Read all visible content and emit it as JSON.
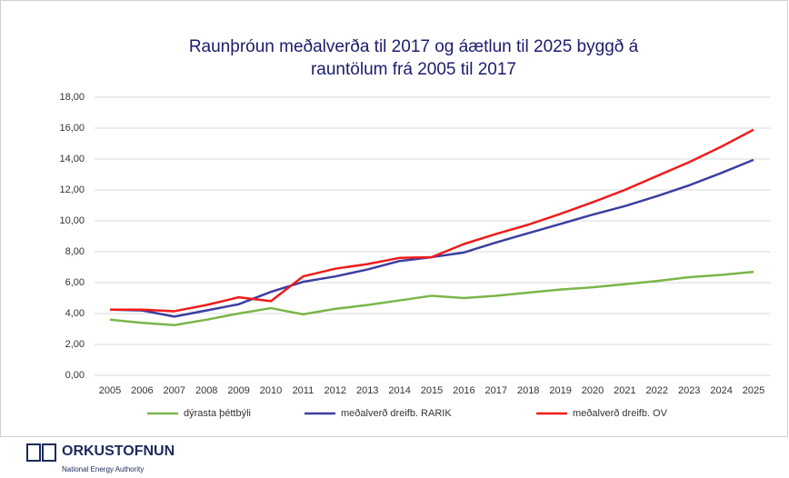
{
  "chart_data": {
    "type": "line",
    "title": [
      "Raunþróun meðalverða  til 2017  og áætlun til 2025   byggð á",
      "rauntölum frá 2005  til 2017"
    ],
    "categories": [
      "2005",
      "2006",
      "2007",
      "2008",
      "2009",
      "2010",
      "2011",
      "2012",
      "2013",
      "2014",
      "2015",
      "2016",
      "2017",
      "2018",
      "2019",
      "2020",
      "2021",
      "2022",
      "2023",
      "2024",
      "2025"
    ],
    "series": [
      {
        "name": "dýrasta þéttbýli",
        "color": "#7ab648",
        "values": [
          3.6,
          3.4,
          3.25,
          3.6,
          4.0,
          4.35,
          3.95,
          4.3,
          4.55,
          4.85,
          5.15,
          5.0,
          5.15,
          5.35,
          5.55,
          5.7,
          5.9,
          6.1,
          6.35,
          6.5,
          6.7
        ]
      },
      {
        "name": "meðalverð dreifb. RARIK",
        "color": "#3b3fa0",
        "values": [
          4.25,
          4.2,
          3.8,
          4.2,
          4.6,
          5.4,
          6.05,
          6.4,
          6.85,
          7.4,
          7.65,
          7.95,
          8.6,
          9.2,
          9.8,
          10.4,
          10.95,
          11.6,
          12.3,
          13.1,
          13.95
        ]
      },
      {
        "name": "meðalverð dreifb. OV",
        "color": "#ee1c1c",
        "values": [
          4.25,
          4.25,
          4.15,
          4.55,
          5.05,
          4.8,
          6.4,
          6.9,
          7.2,
          7.6,
          7.65,
          8.5,
          9.15,
          9.75,
          10.45,
          11.2,
          12.0,
          12.9,
          13.8,
          14.8,
          15.9
        ]
      }
    ],
    "ylim": [
      0,
      18
    ],
    "yticks": [
      {
        "value": 0,
        "label": "0,00"
      },
      {
        "value": 2,
        "label": "2,00"
      },
      {
        "value": 4,
        "label": "4,00"
      },
      {
        "value": 6,
        "label": "6,00"
      },
      {
        "value": 8,
        "label": "8,00"
      },
      {
        "value": 10,
        "label": "10,00"
      },
      {
        "value": 12,
        "label": "12,00"
      },
      {
        "value": 14,
        "label": "14,00"
      },
      {
        "value": 16,
        "label": "16,00"
      },
      {
        "value": 18,
        "label": "18,00"
      }
    ],
    "grid": true,
    "legend": "bottom"
  },
  "logo": {
    "name": "ORKUSTOFNUN",
    "tagline": "National Energy Authority"
  }
}
